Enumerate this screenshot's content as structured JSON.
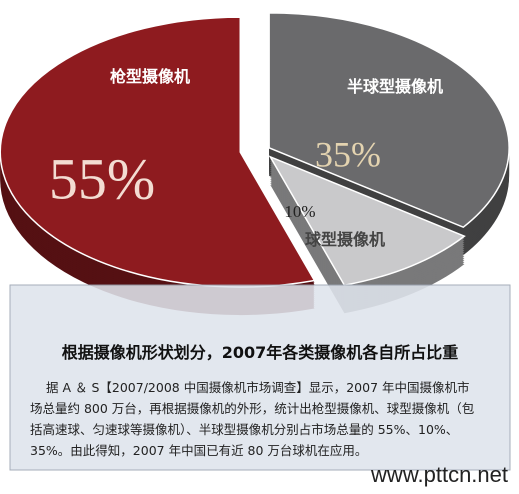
{
  "chart_data": {
    "type": "pie",
    "categories": [
      "枪型摄像机",
      "半球型摄像机",
      "球型摄像机"
    ],
    "values": [
      55,
      35,
      10
    ],
    "value_labels": [
      "55%",
      "35%",
      "10%"
    ],
    "colors": [
      "#8e1b1f",
      "#6a6a6c",
      "#c9c9cb"
    ]
  },
  "caption": {
    "title": "根据摄像机形状划分，2007年各类摄像机各自所占比重",
    "body": [
      "据 A ＆ S【2007/2008 中国摄像机市场调查】显示，2007 年中国摄像机市",
      "场总量约 800 万台，再根据摄像机的外形，统计出枪型摄像机、球型摄像机（包",
      "括高速球、匀速球等摄像机）、半球型摄像机分别占市场总量的 55%、10%、",
      "35%。由此得知，2007 年中国已有近 80 万台球机在应用。"
    ]
  },
  "watermark": "www.pttcn.net"
}
